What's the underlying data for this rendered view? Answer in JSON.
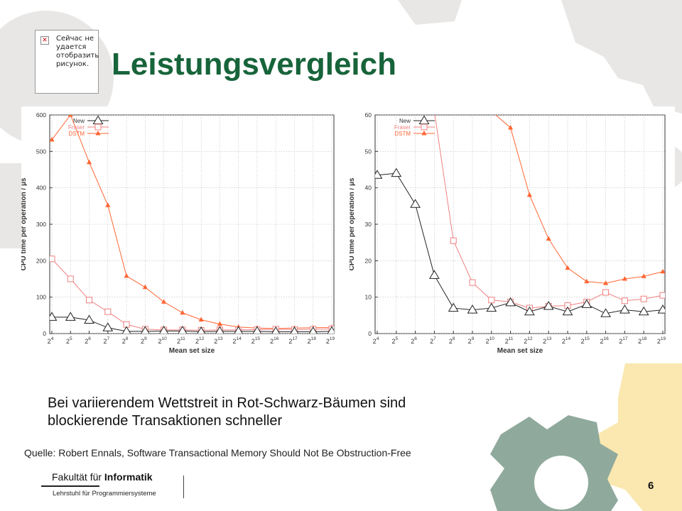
{
  "slide": {
    "title": "Leistungsvergleich",
    "broken_image_text": "Сейчас не удается отобразить рисунок.",
    "caption_line1": "Bei variierendem Wettstreit in Rot-Schwarz-Bäumen sind",
    "caption_line2": "blockierende Transaktionen schneller",
    "source": "Quelle: Robert Ennals, Software Transactional Memory Should Not Be Obstruction-Free",
    "footer_prefix": "Fakultät für ",
    "footer_bold": "Informatik",
    "footer_chair": "Lehrstuhl für Programmiersysteme",
    "page_number": "6",
    "colors": {
      "title": "#17643a",
      "gear_light": "#e8e6e4",
      "gear_green": "#8faa9c",
      "gear_yellow": "#fbe8b0"
    }
  },
  "chart_data": [
    {
      "type": "line",
      "xlabel": "Mean set size",
      "ylabel": "CPU time per operation / µs",
      "x_exponents": [
        "4",
        "5",
        "6",
        "7",
        "8",
        "9",
        "10",
        "11",
        "12",
        "13",
        "14",
        "15",
        "16",
        "17",
        "18",
        "19"
      ],
      "ylim": [
        0,
        600
      ],
      "yticks": [
        "0",
        "100",
        "200",
        "300",
        "400",
        "500",
        "600"
      ],
      "legend_position": "top-left",
      "series": [
        {
          "name": "New",
          "color": "#222222",
          "marker": "triangle-open",
          "values": [
            45,
            45,
            37,
            16,
            6,
            6,
            7,
            7,
            5,
            6,
            6,
            6,
            5,
            5,
            5,
            6
          ]
        },
        {
          "name": "Fraser",
          "color": "#f08080",
          "marker": "square-open",
          "values": [
            205,
            150,
            92,
            60,
            25,
            12,
            10,
            10,
            9,
            10,
            10,
            11,
            12,
            11,
            12,
            13
          ]
        },
        {
          "name": "DSTM",
          "color": "#ff6633",
          "marker": "triangle-filled",
          "values": [
            532,
            600,
            470,
            352,
            158,
            127,
            87,
            57,
            38,
            26,
            18,
            15,
            14,
            15,
            16,
            17
          ]
        }
      ]
    },
    {
      "type": "line",
      "xlabel": "Mean set size",
      "ylabel": "CPU time per operation / µs",
      "x_exponents": [
        "4",
        "5",
        "6",
        "7",
        "8",
        "9",
        "10",
        "11",
        "12",
        "13",
        "14",
        "15",
        "16",
        "17",
        "18",
        "19"
      ],
      "ylim": [
        0,
        60
      ],
      "yticks": [
        "0",
        "10",
        "20",
        "30",
        "40",
        "50",
        "60"
      ],
      "legend_position": "top-left",
      "series": [
        {
          "name": "New",
          "color": "#222222",
          "marker": "triangle-open",
          "values": [
            43.5,
            44,
            35.5,
            16,
            7,
            6.5,
            7,
            8.5,
            6,
            7.5,
            6,
            8,
            5.5,
            6.5,
            6,
            6.5
          ]
        },
        {
          "name": "Fraser",
          "color": "#f08080",
          "marker": "square-open",
          "values": [
            null,
            null,
            null,
            61,
            25.5,
            14,
            9.2,
            8.7,
            7,
            7.5,
            7.7,
            8.7,
            11.3,
            9,
            9.5,
            10.5
          ]
        },
        {
          "name": "DSTM",
          "color": "#ff6633",
          "marker": "triangle-filled",
          "values": [
            null,
            null,
            null,
            null,
            null,
            null,
            61,
            56.5,
            38,
            26,
            18,
            14.3,
            13.8,
            15,
            15.7,
            17
          ]
        }
      ]
    }
  ]
}
